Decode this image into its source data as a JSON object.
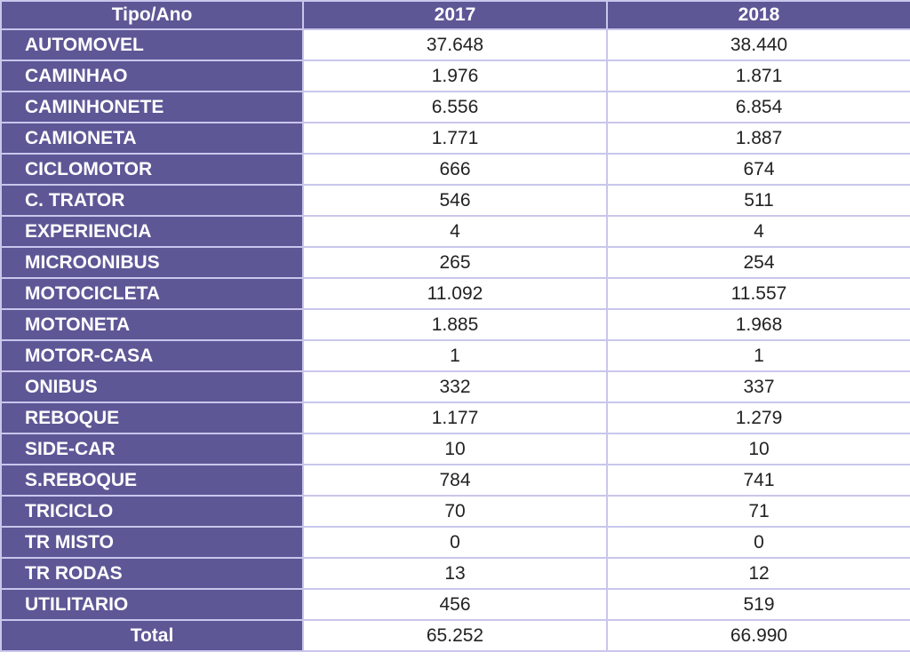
{
  "colors": {
    "header_bg": "#5d5796",
    "header_text": "#ffffff",
    "grid_line": "#c9c6ec",
    "cell_bg": "#ffffff",
    "cell_text": "#222222"
  },
  "table": {
    "headers": [
      "Tipo/Ano",
      "2017",
      "2018"
    ],
    "rows": [
      {
        "type": "AUTOMOVEL",
        "v2017": "37.648",
        "v2018": "38.440"
      },
      {
        "type": "CAMINHAO",
        "v2017": "1.976",
        "v2018": "1.871"
      },
      {
        "type": "CAMINHONETE",
        "v2017": "6.556",
        "v2018": "6.854"
      },
      {
        "type": "CAMIONETA",
        "v2017": "1.771",
        "v2018": "1.887"
      },
      {
        "type": "CICLOMOTOR",
        "v2017": "666",
        "v2018": "674"
      },
      {
        "type": "C. TRATOR",
        "v2017": "546",
        "v2018": "511"
      },
      {
        "type": "EXPERIENCIA",
        "v2017": "4",
        "v2018": "4"
      },
      {
        "type": "MICROONIBUS",
        "v2017": "265",
        "v2018": "254"
      },
      {
        "type": "MOTOCICLETA",
        "v2017": "11.092",
        "v2018": "11.557"
      },
      {
        "type": "MOTONETA",
        "v2017": "1.885",
        "v2018": "1.968"
      },
      {
        "type": "MOTOR-CASA",
        "v2017": "1",
        "v2018": "1"
      },
      {
        "type": "ONIBUS",
        "v2017": "332",
        "v2018": "337"
      },
      {
        "type": "REBOQUE",
        "v2017": "1.177",
        "v2018": "1.279"
      },
      {
        "type": "SIDE-CAR",
        "v2017": "10",
        "v2018": "10"
      },
      {
        "type": "S.REBOQUE",
        "v2017": "784",
        "v2018": "741"
      },
      {
        "type": "TRICICLO",
        "v2017": "70",
        "v2018": "71"
      },
      {
        "type": "TR MISTO",
        "v2017": "0",
        "v2018": "0"
      },
      {
        "type": "TR RODAS",
        "v2017": "13",
        "v2018": "12"
      },
      {
        "type": "UTILITARIO",
        "v2017": "456",
        "v2018": "519"
      }
    ],
    "total": {
      "label": "Total",
      "v2017": "65.252",
      "v2018": "66.990"
    }
  }
}
